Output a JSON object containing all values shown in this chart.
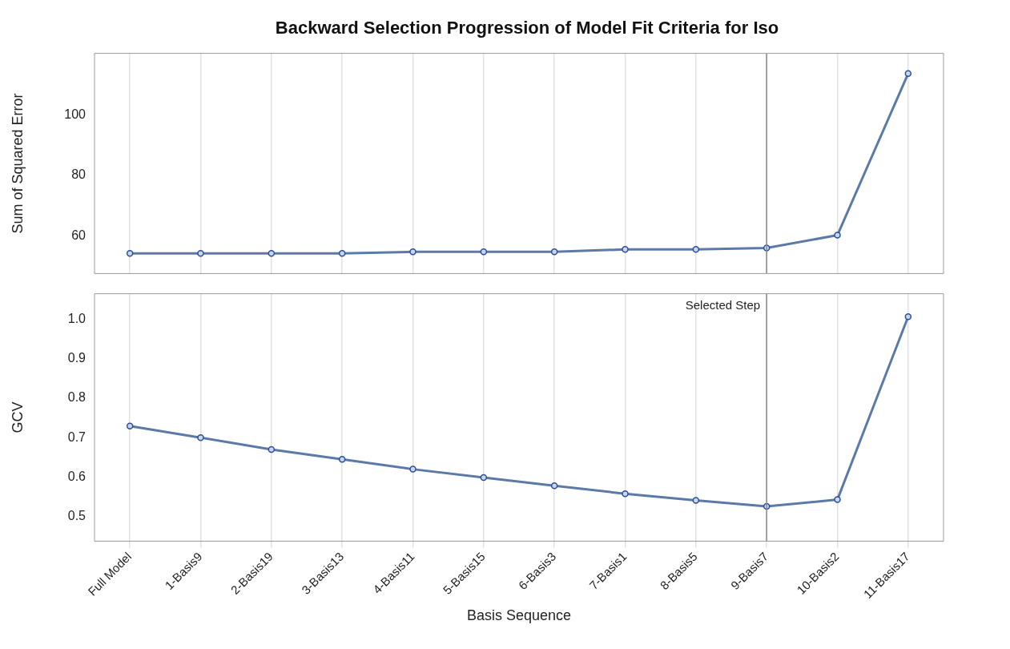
{
  "chart_data": [
    {
      "type": "line",
      "title": "Backward Selection Progression of Model Fit Criteria for Iso",
      "ylabel": "Sum of Squared Error",
      "categories": [
        "Full Model",
        "1-Basis9",
        "2-Basis19",
        "3-Basis13",
        "4-Basis11",
        "5-Basis15",
        "6-Basis3",
        "7-Basis1",
        "8-Basis5",
        "9-Basis7",
        "10-Basis2",
        "11-Basis17"
      ],
      "series": [
        {
          "color": "#5b7aa8",
          "values": [
            54.2,
            54.2,
            54.2,
            54.2,
            54.7,
            54.7,
            54.7,
            55.5,
            55.5,
            56.0,
            60.2,
            113.8
          ]
        }
      ],
      "ylim": [
        47.5,
        120.5
      ],
      "yticks": [
        60,
        80,
        100
      ],
      "grid": "x",
      "legend": false,
      "marker": "circle",
      "tick_labels": "y",
      "ref_lines": [
        {
          "axis": "x",
          "value": "9-Basis7"
        }
      ]
    },
    {
      "type": "line",
      "xlabel": "Basis Sequence",
      "ylabel": "GCV",
      "categories": [
        "Full Model",
        "1-Basis9",
        "2-Basis19",
        "3-Basis13",
        "4-Basis11",
        "5-Basis15",
        "6-Basis3",
        "7-Basis1",
        "8-Basis5",
        "9-Basis7",
        "10-Basis2",
        "11-Basis17"
      ],
      "series": [
        {
          "color": "#5b7aa8",
          "values": [
            0.729,
            0.7,
            0.67,
            0.645,
            0.62,
            0.599,
            0.578,
            0.558,
            0.541,
            0.526,
            0.543,
            1.006
          ]
        }
      ],
      "ylim": [
        0.438,
        1.064
      ],
      "yticks": [
        {
          "value": 0.5,
          "label": "0.5"
        },
        {
          "value": 0.6,
          "label": "0.6"
        },
        {
          "value": 0.7,
          "label": "0.7"
        },
        {
          "value": 0.8,
          "label": "0.8"
        },
        {
          "value": 0.9,
          "label": "0.9"
        },
        {
          "value": 1.0,
          "label": "1.0"
        }
      ],
      "grid": "x",
      "legend": false,
      "marker": "circle",
      "ref_lines": [
        {
          "axis": "x",
          "value": "9-Basis7",
          "label": "Selected Step"
        }
      ]
    }
  ]
}
